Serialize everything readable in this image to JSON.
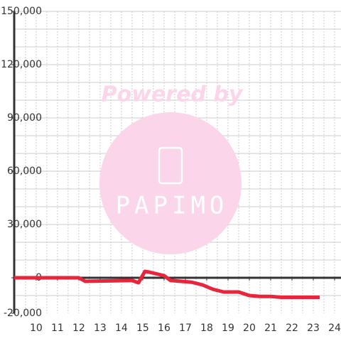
{
  "chart_data": {
    "type": "line",
    "x": [
      8.97,
      12.0,
      12.3,
      14.5,
      14.8,
      15.1,
      15.3,
      16.0,
      16.3,
      16.8,
      17.3,
      17.8,
      18.3,
      18.8,
      19.5,
      20.0,
      20.5,
      21.0,
      21.5,
      22.0,
      23.3
    ],
    "series": [
      {
        "color": "#e8253a",
        "values": [
          0,
          0,
          -2000,
          -1500,
          -2800,
          3600,
          3200,
          1200,
          -1500,
          -2000,
          -2500,
          -4000,
          -6500,
          -8000,
          -8000,
          -10000,
          -10500,
          -10500,
          -11000,
          -11000,
          -11000
        ]
      }
    ],
    "xlim": [
      8.97,
      24.3
    ],
    "xticks": [
      10,
      11,
      12,
      13,
      14,
      15,
      16,
      17,
      18,
      19,
      20,
      21,
      22,
      23,
      24
    ],
    "xgrid": [
      9.5,
      10,
      10.5,
      11,
      11.5,
      12,
      12.5,
      13,
      13.5,
      14,
      14.5,
      15,
      15.5,
      16,
      16.5,
      17,
      17.5,
      18,
      18.5,
      19,
      19.5,
      20,
      20.5,
      21,
      21.5,
      22,
      22.5,
      23,
      23.5,
      24
    ],
    "ylim": [
      -20000,
      150000
    ],
    "yticks": [
      {
        "value": -20000,
        "label": "-20,000"
      },
      0,
      {
        "value": 30000,
        "label": "30,000"
      },
      {
        "value": 60000,
        "label": "60,000"
      },
      {
        "value": 90000,
        "label": "90,000"
      },
      {
        "value": 120000,
        "label": "120,000"
      },
      {
        "value": 150000,
        "label": "150,000"
      }
    ],
    "ygrid": [
      -10000,
      10000,
      20000,
      30000,
      40000,
      50000,
      60000,
      70000,
      80000,
      90000,
      100000,
      110000,
      120000,
      130000,
      140000,
      150000
    ],
    "grid": true,
    "watermark": {
      "line1": "Powered by",
      "line2": "PAPIMO"
    }
  }
}
